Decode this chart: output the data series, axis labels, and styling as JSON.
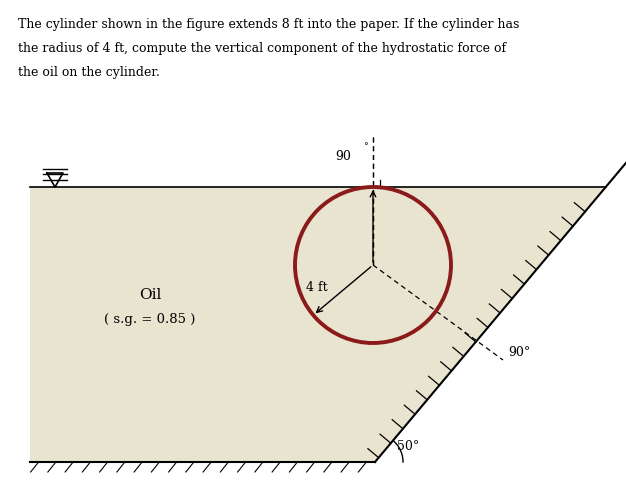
{
  "title_line1": "The cylinder shown in the figure extends 8 ft into the paper. If the cylinder has",
  "title_line2": "the radius of 4 ft, compute the vertical component of the hydrostatic force of",
  "title_line3": "the oil on the cylinder.",
  "oil_fill_color": "#e8e4d0",
  "circle_color": "#8b1a1a",
  "oil_label": "Oil",
  "oil_sg_label": "( s.g. = 0.85 )",
  "radius_label": "4 ft",
  "angle_90_top": "90",
  "angle_90_right": "90°",
  "angle_50": "50°"
}
